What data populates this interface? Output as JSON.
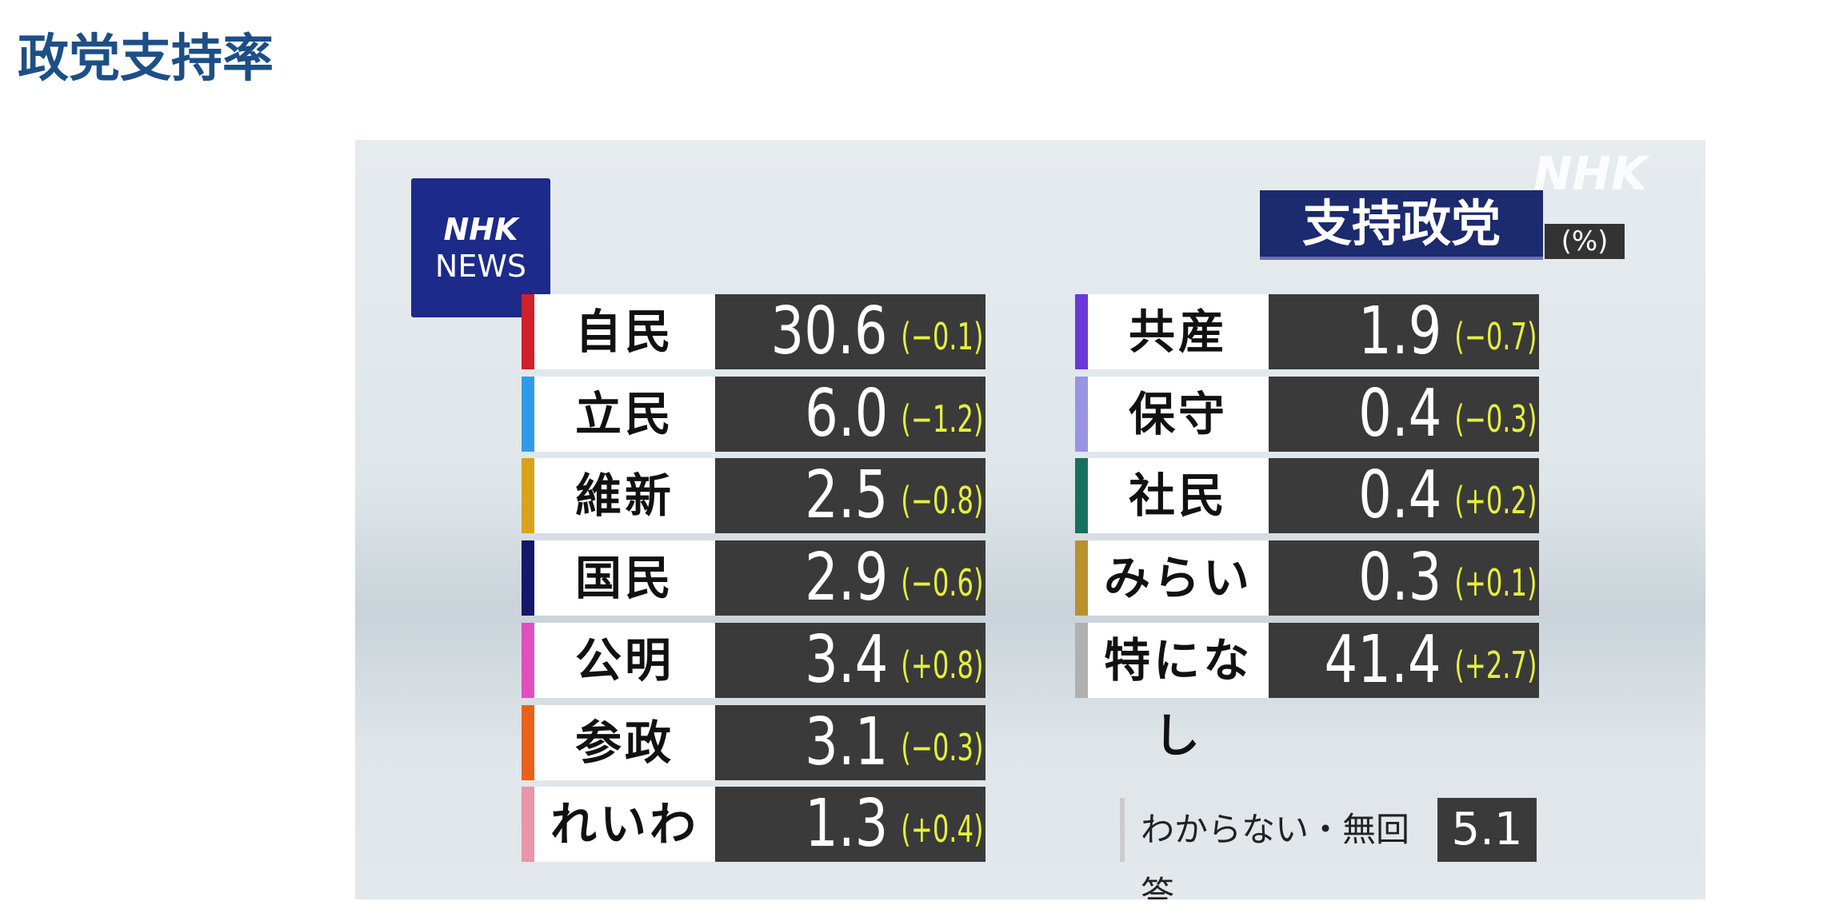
{
  "page_title": "政党支持率",
  "graphic": {
    "logo_line1": "NHK",
    "logo_line2": "NEWS",
    "watermark": "NHK",
    "header": "支持政党",
    "unit": "(%)",
    "left_rows": [
      {
        "party": "自民",
        "value": "30.6",
        "change": "(−0.1)",
        "color": "#d0202a"
      },
      {
        "party": "立民",
        "value": "6.0",
        "change": "(−1.2)",
        "color": "#2f9be8"
      },
      {
        "party": "維新",
        "value": "2.5",
        "change": "(−0.8)",
        "color": "#d9a21c"
      },
      {
        "party": "国民",
        "value": "2.9",
        "change": "(−0.6)",
        "color": "#14186a"
      },
      {
        "party": "公明",
        "value": "3.4",
        "change": "(+0.8)",
        "color": "#e04fc0"
      },
      {
        "party": "参政",
        "value": "3.1",
        "change": "(−0.3)",
        "color": "#e8621a"
      },
      {
        "party": "れいわ",
        "value": "1.3",
        "change": "(+0.4)",
        "color": "#e896a8"
      }
    ],
    "right_rows": [
      {
        "party": "共産",
        "value": "1.9",
        "change": "(−0.7)",
        "color": "#6a38d8"
      },
      {
        "party": "保守",
        "value": "0.4",
        "change": "(−0.3)",
        "color": "#9a94e0"
      },
      {
        "party": "社民",
        "value": "0.4",
        "change": "(+0.2)",
        "color": "#167060"
      },
      {
        "party": "みらい",
        "value": "0.3",
        "change": "(+0.1)",
        "color": "#b8922a"
      },
      {
        "party": "特になし",
        "value": "41.4",
        "change": "(+2.7)",
        "color": "#b0b0b0"
      }
    ],
    "dont_know": {
      "label": "わからない・無回答",
      "value": "5.1"
    }
  },
  "chart_data": {
    "type": "table",
    "title": "支持政党",
    "unit": "(%)",
    "columns": [
      "party",
      "support",
      "change"
    ],
    "rows": [
      [
        "自民",
        30.6,
        -0.1
      ],
      [
        "立民",
        6.0,
        -1.2
      ],
      [
        "維新",
        2.5,
        -0.8
      ],
      [
        "国民",
        2.9,
        -0.6
      ],
      [
        "公明",
        3.4,
        0.8
      ],
      [
        "参政",
        3.1,
        -0.3
      ],
      [
        "れいわ",
        1.3,
        0.4
      ],
      [
        "共産",
        1.9,
        -0.7
      ],
      [
        "保守",
        0.4,
        -0.3
      ],
      [
        "社民",
        0.4,
        0.2
      ],
      [
        "みらい",
        0.3,
        0.1
      ],
      [
        "特になし",
        41.4,
        2.7
      ],
      [
        "わからない・無回答",
        5.1,
        null
      ]
    ]
  }
}
